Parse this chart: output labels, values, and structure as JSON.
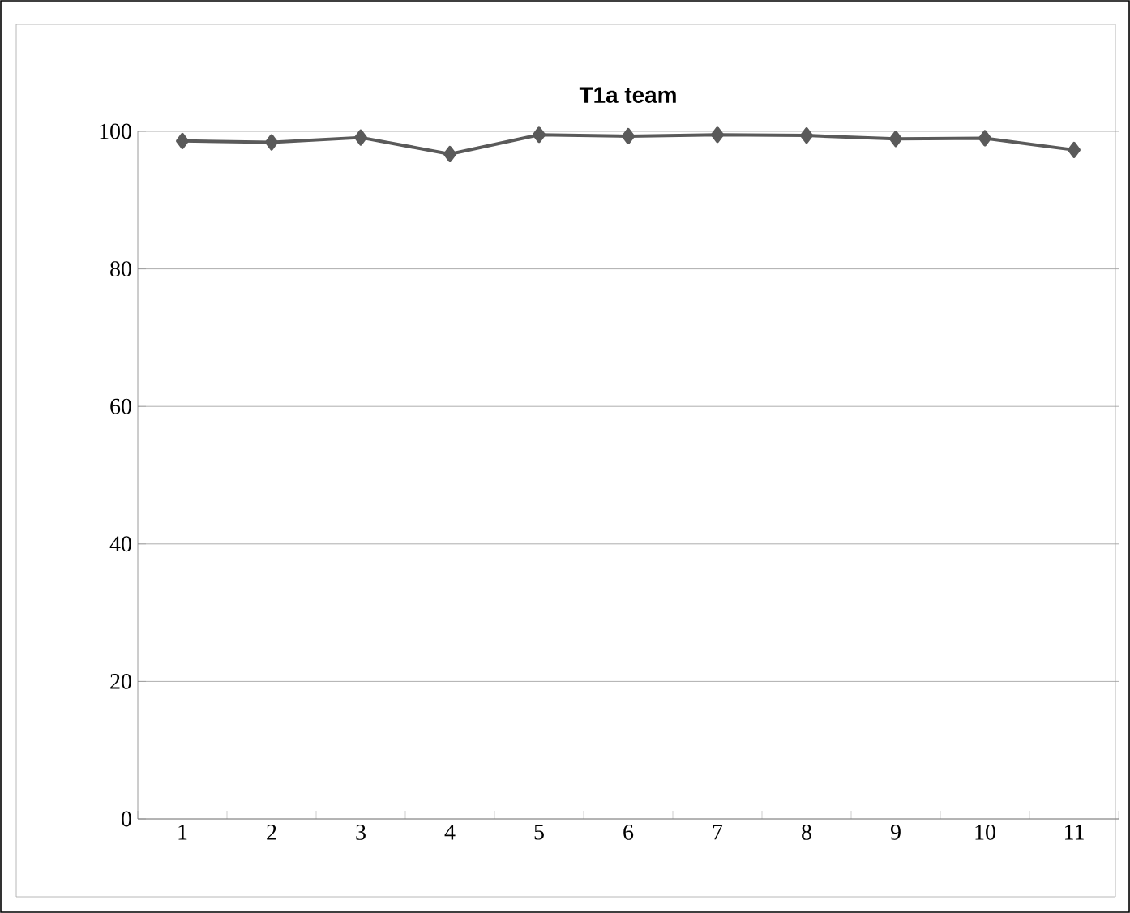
{
  "chart_data": {
    "type": "line",
    "title": "T1a team",
    "categories": [
      "1",
      "2",
      "3",
      "4",
      "5",
      "6",
      "7",
      "8",
      "9",
      "10",
      "11"
    ],
    "values": [
      98.6,
      98.4,
      99.1,
      96.7,
      99.5,
      99.3,
      99.5,
      99.4,
      98.9,
      99.0,
      97.3
    ],
    "color": "#5a5a5a",
    "ylim": [
      0,
      100
    ],
    "yticks": [
      0,
      20,
      40,
      60,
      80,
      100
    ],
    "grid": "y",
    "marker": "diamond",
    "line_style": "solid"
  }
}
